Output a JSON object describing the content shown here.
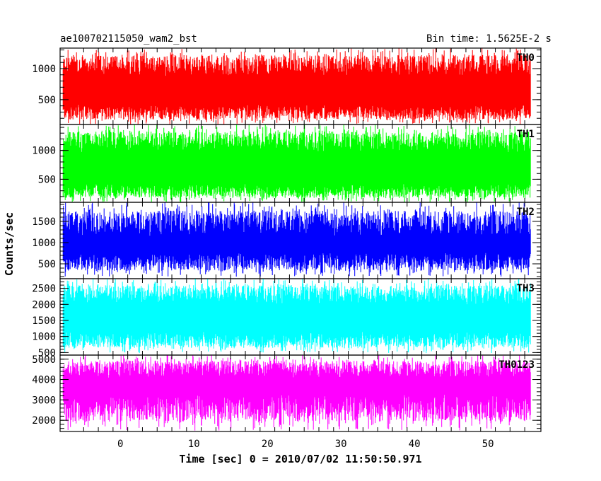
{
  "header": {
    "title": "ae100702115050_wam2_bst",
    "bin_time": "Bin time: 1.5625E-2 s"
  },
  "chart_data": {
    "type": "line",
    "title": "ae100702115050_wam2_bst",
    "subtitle": "Bin time: 1.5625E-2 s",
    "xlabel": "Time [sec] 0 = 2010/07/02 11:50:50.971",
    "ylabel": "Counts/sec",
    "xlim": [
      -8.2,
      57.2
    ],
    "x_range_data": [
      -7.8,
      55.8
    ],
    "x_ticks": [
      0,
      10,
      20,
      30,
      40,
      50
    ],
    "bin_time": 0.015625,
    "grid": false,
    "legend": "none",
    "panels": [
      {
        "name": "TH0",
        "color": "#ff0000",
        "ylim": [
          100,
          1330
        ],
        "y_ticks": [
          500,
          1000
        ],
        "typical_low": 300,
        "typical_high": 1050,
        "min": 100,
        "max": 1330
      },
      {
        "name": "TH1",
        "color": "#00ff00",
        "ylim": [
          100,
          1450
        ],
        "y_ticks": [
          500,
          1000
        ],
        "typical_low": 300,
        "typical_high": 1150,
        "min": 100,
        "max": 1450
      },
      {
        "name": "TH2",
        "color": "#0000ff",
        "ylim": [
          150,
          1950
        ],
        "y_ticks": [
          500,
          1000,
          1500
        ],
        "typical_low": 550,
        "typical_high": 1450,
        "min": 200,
        "max": 1950
      },
      {
        "name": "TH3",
        "color": "#00ffff",
        "ylim": [
          420,
          2800
        ],
        "y_ticks": [
          500,
          1000,
          1500,
          2000,
          2500
        ],
        "typical_low": 900,
        "typical_high": 2300,
        "min": 480,
        "max": 2800
      },
      {
        "name": "TH0123",
        "color": "#ff00ff",
        "ylim": [
          1450,
          5200
        ],
        "y_ticks": [
          2000,
          3000,
          4000,
          5000
        ],
        "typical_low": 2600,
        "typical_high": 4500,
        "min": 1500,
        "max": 5200
      }
    ]
  }
}
